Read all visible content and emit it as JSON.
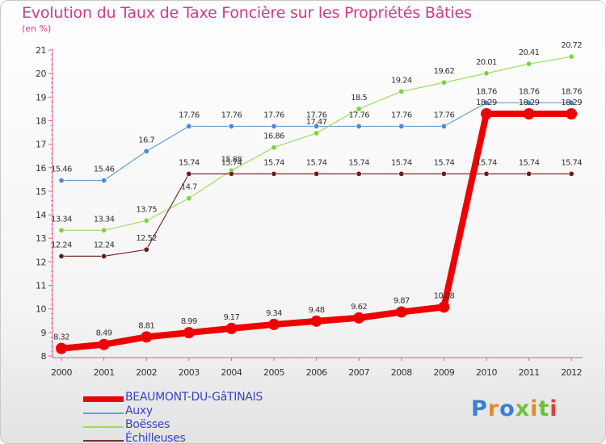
{
  "title": "Evolution du Taux de Taxe Foncière sur les Propriétés Bâties",
  "subtitle": "(en %)",
  "brand": "Proxiti",
  "chart_data": {
    "type": "line",
    "x": [
      "2000",
      "2001",
      "2002",
      "2003",
      "2004",
      "2005",
      "2006",
      "2007",
      "2008",
      "2009",
      "2010",
      "2011",
      "2012"
    ],
    "ylim": [
      8,
      21
    ],
    "yticks": [
      8,
      9,
      10,
      11,
      12,
      13,
      14,
      15,
      16,
      17,
      18,
      19,
      20,
      21
    ],
    "grid": false,
    "legend_position": "bottom-left",
    "series": [
      {
        "name": "BEAUMONT-DU-GâTINAIS",
        "color": "#ee0000",
        "thick": true,
        "values": [
          8.32,
          8.49,
          8.81,
          8.99,
          9.17,
          9.34,
          9.48,
          9.62,
          9.87,
          10.08,
          18.29,
          18.29,
          18.29
        ],
        "labels": [
          "8.32",
          "8.49",
          "8.81",
          "8.99",
          "9.17",
          "9.34",
          "9.48",
          "9.62",
          "9.87",
          "10.08",
          "18.29",
          "18.29",
          "18.29"
        ]
      },
      {
        "name": "Auxy",
        "color": "#6a9ed0",
        "marker": "#4a8bd6",
        "values": [
          15.46,
          15.46,
          16.7,
          17.76,
          17.76,
          17.76,
          17.76,
          17.76,
          17.76,
          17.76,
          18.76,
          18.76,
          18.76
        ],
        "labels": [
          "15.46",
          "15.46",
          "16.7",
          "17.76",
          "17.76",
          "17.76",
          "17.76",
          "17.76",
          "17.76",
          "17.76",
          "18.76",
          "18.76",
          "18.76"
        ]
      },
      {
        "name": "Boësses",
        "color": "#99dd66",
        "marker": "#7fd140",
        "values": [
          13.34,
          13.34,
          13.75,
          14.7,
          15.88,
          16.86,
          17.47,
          18.5,
          19.24,
          19.62,
          20.01,
          20.41,
          20.72
        ],
        "labels": [
          "13.34",
          "13.34",
          "13.75",
          "14.7",
          "15.88",
          "16.86",
          "17.47",
          "18.5",
          "19.24",
          "19.62",
          "20.01",
          "20.41",
          "20.72"
        ]
      },
      {
        "name": "Échilleuses",
        "color": "#7a3030",
        "marker": "#6b1f1f",
        "values": [
          12.24,
          12.24,
          12.52,
          15.74,
          15.74,
          15.74,
          15.74,
          15.74,
          15.74,
          15.74,
          15.74,
          15.74,
          15.74
        ],
        "labels": [
          "12.24",
          "12.24",
          "12.52",
          "15.74",
          "15.74",
          "15.74",
          "15.74",
          "15.74",
          "15.74",
          "15.74",
          "15.74",
          "15.74",
          "15.74"
        ]
      }
    ]
  },
  "legend": [
    {
      "label": "BEAUMONT-DU-GâTINAIS",
      "color": "#ee0000"
    },
    {
      "label": "Auxy",
      "color": "#6a9ed0"
    },
    {
      "label": "Boësses",
      "color": "#99dd66"
    },
    {
      "label": "Échilleuses",
      "color": "#7a3030"
    }
  ]
}
